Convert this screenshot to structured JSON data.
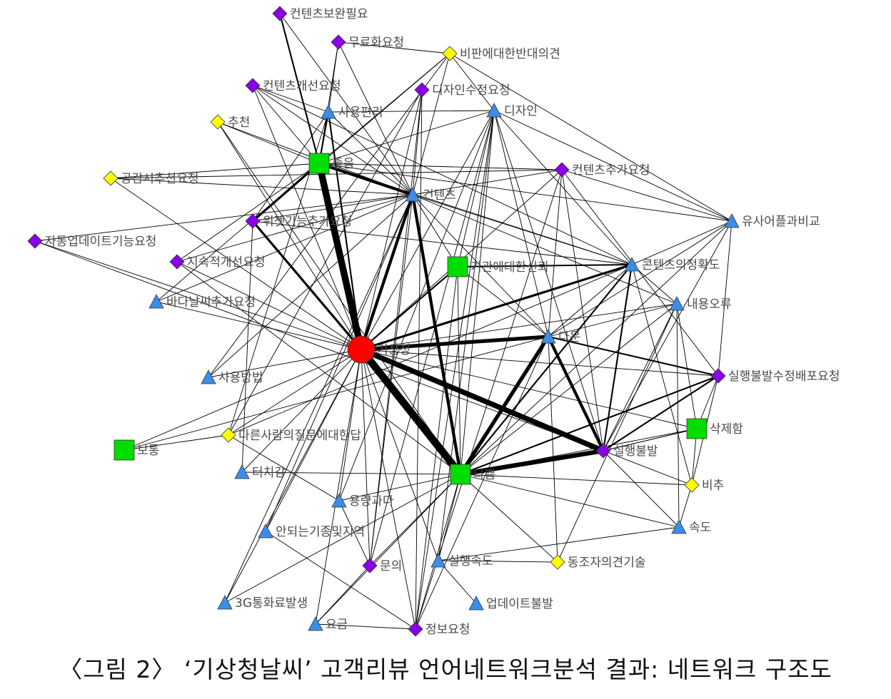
{
  "caption": "〈그림 2〉 ‘기상청날씨’ 고객리뷰 언어네트워크분석 결과: 네트워크 구조도",
  "colors": {
    "circle": "#ff0000",
    "square": "#00dd00",
    "triangle": "#3b8ee8",
    "diamond_purple": "#8a00e6",
    "diamond_yellow": "#ffff00",
    "edge": "#000000",
    "label": "#4a4a4a"
  },
  "nodes": [
    {
      "id": "기상청",
      "label": "기상청",
      "shape": "circle"
    },
    {
      "id": "좋음",
      "label": "좋음",
      "shape": "square"
    },
    {
      "id": "기관에대한신뢰",
      "label": "기관에대한신뢰",
      "shape": "square"
    },
    {
      "id": "보통",
      "label": "보통",
      "shape": "square"
    },
    {
      "id": "나쁨",
      "label": "나쁨",
      "shape": "square"
    },
    {
      "id": "삭제함",
      "label": "삭제함",
      "shape": "square"
    },
    {
      "id": "사용편리",
      "label": "사용편리",
      "shape": "triangle"
    },
    {
      "id": "디자인",
      "label": "디자인",
      "shape": "triangle"
    },
    {
      "id": "컨텐츠",
      "label": "컨텐츠",
      "shape": "triangle"
    },
    {
      "id": "유사어플과비교",
      "label": "유사어플과비교",
      "shape": "triangle"
    },
    {
      "id": "콘텐츠의정확도",
      "label": "콘텐츠의정확도",
      "shape": "triangle"
    },
    {
      "id": "내용오류",
      "label": "내용오류",
      "shape": "triangle"
    },
    {
      "id": "다운",
      "label": "다운",
      "shape": "triangle"
    },
    {
      "id": "바다날씨추가요청",
      "label": "바다날씨추가요청",
      "shape": "triangle"
    },
    {
      "id": "사용방법",
      "label": "사용방법",
      "shape": "triangle"
    },
    {
      "id": "터치감",
      "label": "터치감",
      "shape": "triangle"
    },
    {
      "id": "용량과다",
      "label": "용량과다",
      "shape": "triangle"
    },
    {
      "id": "안되는기종및지역",
      "label": "안되는기종및지역",
      "shape": "triangle"
    },
    {
      "id": "3G통화료발생",
      "label": "3G통화료발생",
      "shape": "triangle"
    },
    {
      "id": "요금",
      "label": "요금",
      "shape": "triangle"
    },
    {
      "id": "실행속도",
      "label": "실행속도",
      "shape": "triangle"
    },
    {
      "id": "업데이트불발",
      "label": "업데이트불발",
      "shape": "triangle"
    },
    {
      "id": "속도",
      "label": "속도",
      "shape": "triangle"
    },
    {
      "id": "컨텐츠보완필요",
      "label": "컨텐츠보완필요",
      "shape": "diamond_purple"
    },
    {
      "id": "무료화요청",
      "label": "무료화요청",
      "shape": "diamond_purple"
    },
    {
      "id": "컨텐츠개선요청",
      "label": "컨텐츠개선요청",
      "shape": "diamond_purple"
    },
    {
      "id": "디자인수정요청",
      "label": "디자인수정요청",
      "shape": "diamond_purple"
    },
    {
      "id": "컨텐츠추가요청",
      "label": "컨텐츠추가요청",
      "shape": "diamond_purple"
    },
    {
      "id": "위젯기능추가요청",
      "label": "위젯기능추가요청",
      "shape": "diamond_purple"
    },
    {
      "id": "자동업데이트기능요청",
      "label": "자동업데이트기능요청",
      "shape": "diamond_purple"
    },
    {
      "id": "지속적개선요청",
      "label": "지속적개선요청",
      "shape": "diamond_purple"
    },
    {
      "id": "실행불발수정배포요청",
      "label": "실행불발수정배포요청",
      "shape": "diamond_purple"
    },
    {
      "id": "실행불발",
      "label": "실행불발",
      "shape": "diamond_purple"
    },
    {
      "id": "문의",
      "label": "문의",
      "shape": "diamond_purple"
    },
    {
      "id": "정보요청",
      "label": "정보요청",
      "shape": "diamond_purple"
    },
    {
      "id": "비판에대한반대의견",
      "label": "비판에대한반대의견",
      "shape": "diamond_yellow"
    },
    {
      "id": "추천",
      "label": "추천",
      "shape": "diamond_yellow"
    },
    {
      "id": "공감시추천요청",
      "label": "공감시추천요청",
      "shape": "diamond_yellow"
    },
    {
      "id": "다른사람의질문에대한답",
      "label": "다른사람의질문에대한답",
      "shape": "diamond_yellow"
    },
    {
      "id": "비추",
      "label": "비추",
      "shape": "diamond_yellow"
    },
    {
      "id": "동조자의견기술",
      "label": "동조자의견기술",
      "shape": "diamond_yellow"
    }
  ],
  "edges": [
    {
      "source": "기상청",
      "target": "좋음",
      "weight": 9
    },
    {
      "source": "기상청",
      "target": "나쁨",
      "weight": 10
    },
    {
      "source": "기상청",
      "target": "실행불발",
      "weight": 7
    },
    {
      "source": "기상청",
      "target": "다운",
      "weight": 5
    },
    {
      "source": "기상청",
      "target": "컨텐츠",
      "weight": 4
    },
    {
      "source": "기상청",
      "target": "위젯기능추가요청",
      "weight": 3
    },
    {
      "source": "기상청",
      "target": "콘텐츠의정확도",
      "weight": 3
    },
    {
      "source": "기상청",
      "target": "기관에대한신뢰",
      "weight": 2
    },
    {
      "source": "기상청",
      "target": "사용편리",
      "weight": 2
    },
    {
      "source": "기상청",
      "target": "실행불발수정배포요청",
      "weight": 1
    },
    {
      "source": "기상청",
      "target": "삭제함",
      "weight": 1
    },
    {
      "source": "기상청",
      "target": "내용오류",
      "weight": 1
    },
    {
      "source": "기상청",
      "target": "보통",
      "weight": 1
    },
    {
      "source": "기상청",
      "target": "다른사람의질문에대한답",
      "weight": 1
    },
    {
      "source": "기상청",
      "target": "사용방법",
      "weight": 1
    },
    {
      "source": "기상청",
      "target": "바다날씨추가요청",
      "weight": 1
    },
    {
      "source": "기상청",
      "target": "지속적개선요청",
      "weight": 1
    },
    {
      "source": "기상청",
      "target": "자동업데이트기능요청",
      "weight": 1
    },
    {
      "source": "기상청",
      "target": "공감시추천요청",
      "weight": 1
    },
    {
      "source": "기상청",
      "target": "터치감",
      "weight": 1
    },
    {
      "source": "기상청",
      "target": "용량과다",
      "weight": 1
    },
    {
      "source": "기상청",
      "target": "안되는기종및지역",
      "weight": 1
    },
    {
      "source": "기상청",
      "target": "3G통화료발생",
      "weight": 1
    },
    {
      "source": "기상청",
      "target": "요금",
      "weight": 1
    },
    {
      "source": "기상청",
      "target": "문의",
      "weight": 1
    },
    {
      "source": "기상청",
      "target": "실행속도",
      "weight": 1
    },
    {
      "source": "기상청",
      "target": "정보요청",
      "weight": 1
    },
    {
      "source": "기상청",
      "target": "디자인",
      "weight": 1
    },
    {
      "source": "기상청",
      "target": "컨텐츠추가요청",
      "weight": 1
    },
    {
      "source": "기상청",
      "target": "디자인수정요청",
      "weight": 1
    },
    {
      "source": "기상청",
      "target": "컨텐츠개선요청",
      "weight": 1
    },
    {
      "source": "기상청",
      "target": "추천",
      "weight": 1
    },
    {
      "source": "좋음",
      "target": "컨텐츠",
      "weight": 4
    },
    {
      "source": "좋음",
      "target": "위젯기능추가요청",
      "weight": 3
    },
    {
      "source": "좋음",
      "target": "사용편리",
      "weight": 2
    },
    {
      "source": "좋음",
      "target": "컨텐츠보완필요",
      "weight": 2
    },
    {
      "source": "좋음",
      "target": "무료화요청",
      "weight": 1
    },
    {
      "source": "좋음",
      "target": "컨텐츠개선요청",
      "weight": 1
    },
    {
      "source": "좋음",
      "target": "추천",
      "weight": 1
    },
    {
      "source": "좋음",
      "target": "공감시추천요청",
      "weight": 1
    },
    {
      "source": "좋음",
      "target": "디자인",
      "weight": 1
    },
    {
      "source": "좋음",
      "target": "컨텐츠추가요청",
      "weight": 1
    },
    {
      "source": "좋음",
      "target": "유사어플과비교",
      "weight": 1
    },
    {
      "source": "좋음",
      "target": "바다날씨추가요청",
      "weight": 1
    },
    {
      "source": "좋음",
      "target": "지속적개선요청",
      "weight": 1
    },
    {
      "source": "좋음",
      "target": "콘텐츠의정확도",
      "weight": 1
    },
    {
      "source": "좋음",
      "target": "비판에대한반대의견",
      "weight": 1
    },
    {
      "source": "컨텐츠",
      "target": "나쁨",
      "weight": 4
    },
    {
      "source": "컨텐츠",
      "target": "위젯기능추가요청",
      "weight": 1
    },
    {
      "source": "컨텐츠",
      "target": "자동업데이트기능요청",
      "weight": 1
    },
    {
      "source": "컨텐츠",
      "target": "다운",
      "weight": 1
    },
    {
      "source": "컨텐츠",
      "target": "콘텐츠의정확도",
      "weight": 1
    },
    {
      "source": "컨텐츠",
      "target": "내용오류",
      "weight": 1
    },
    {
      "source": "컨텐츠",
      "target": "컨텐츠개선요청",
      "weight": 1
    },
    {
      "source": "컨텐츠",
      "target": "디자인수정요청",
      "weight": 1
    },
    {
      "source": "컨텐츠",
      "target": "컨텐츠추가요청",
      "weight": 1
    },
    {
      "source": "컨텐츠",
      "target": "문의",
      "weight": 1
    },
    {
      "source": "컨텐츠",
      "target": "지속적개선요청",
      "weight": 1
    },
    {
      "source": "나쁨",
      "target": "실행불발",
      "weight": 6
    },
    {
      "source": "나쁨",
      "target": "다운",
      "weight": 5
    },
    {
      "source": "나쁨",
      "target": "실행불발수정배포요청",
      "weight": 2
    },
    {
      "source": "나쁨",
      "target": "콘텐츠의정확도",
      "weight": 2
    },
    {
      "source": "나쁨",
      "target": "삭제함",
      "weight": 1
    },
    {
      "source": "나쁨",
      "target": "비추",
      "weight": 1
    },
    {
      "source": "나쁨",
      "target": "속도",
      "weight": 1
    },
    {
      "source": "나쁨",
      "target": "터치감",
      "weight": 1
    },
    {
      "source": "나쁨",
      "target": "용량과다",
      "weight": 1
    },
    {
      "source": "나쁨",
      "target": "문의",
      "weight": 1
    },
    {
      "source": "나쁨",
      "target": "정보요청",
      "weight": 1
    },
    {
      "source": "나쁨",
      "target": "요금",
      "weight": 1
    },
    {
      "source": "나쁨",
      "target": "동조자의견기술",
      "weight": 1
    },
    {
      "source": "나쁨",
      "target": "디자인",
      "weight": 1
    },
    {
      "source": "나쁨",
      "target": "내용오류",
      "weight": 1
    },
    {
      "source": "나쁨",
      "target": "유사어플과비교",
      "weight": 1
    },
    {
      "source": "나쁨",
      "target": "기관에대한신뢰",
      "weight": 1
    },
    {
      "source": "나쁨",
      "target": "실행속도",
      "weight": 1
    },
    {
      "source": "실행불발",
      "target": "다운",
      "weight": 4
    },
    {
      "source": "실행불발",
      "target": "실행불발수정배포요청",
      "weight": 2
    },
    {
      "source": "실행불발",
      "target": "콘텐츠의정확도",
      "weight": 2
    },
    {
      "source": "실행불발",
      "target": "삭제함",
      "weight": 1
    },
    {
      "source": "실행불발",
      "target": "비추",
      "weight": 1
    },
    {
      "source": "실행불발",
      "target": "내용오류",
      "weight": 1
    },
    {
      "source": "실행불발",
      "target": "유사어플과비교",
      "weight": 1
    },
    {
      "source": "실행불발",
      "target": "디자인",
      "weight": 1
    },
    {
      "source": "실행불발",
      "target": "속도",
      "weight": 1
    },
    {
      "source": "실행불발",
      "target": "컨텐츠추가요청",
      "weight": 1
    },
    {
      "source": "다운",
      "target": "실행불발수정배포요청",
      "weight": 2
    },
    {
      "source": "다운",
      "target": "콘텐츠의정확도",
      "weight": 1
    },
    {
      "source": "다운",
      "target": "디자인",
      "weight": 1
    },
    {
      "source": "다운",
      "target": "유사어플과비교",
      "weight": 1
    },
    {
      "source": "다운",
      "target": "내용오류",
      "weight": 1
    },
    {
      "source": "다운",
      "target": "컨텐츠추가요청",
      "weight": 1
    },
    {
      "source": "다운",
      "target": "기관에대한신뢰",
      "weight": 1
    },
    {
      "source": "기관에대한신뢰",
      "target": "콘텐츠의정확도",
      "weight": 2
    },
    {
      "source": "기관에대한신뢰",
      "target": "컨텐츠",
      "weight": 1
    },
    {
      "source": "기관에대한신뢰",
      "target": "디자인",
      "weight": 1
    },
    {
      "source": "디자인",
      "target": "비판에대한반대의견",
      "weight": 1
    },
    {
      "source": "디자인",
      "target": "유사어플과비교",
      "weight": 1
    },
    {
      "source": "디자인",
      "target": "사용편리",
      "weight": 1
    },
    {
      "source": "디자인",
      "target": "문의",
      "weight": 1
    },
    {
      "source": "디자인",
      "target": "정보요청",
      "weight": 1
    },
    {
      "source": "디자인",
      "target": "실행속도",
      "weight": 1
    },
    {
      "source": "디자인",
      "target": "콘텐츠의정확도",
      "weight": 1
    },
    {
      "source": "사용편리",
      "target": "무료화요청",
      "weight": 1
    },
    {
      "source": "사용편리",
      "target": "컨텐츠개선요청",
      "weight": 1
    },
    {
      "source": "사용편리",
      "target": "위젯기능추가요청",
      "weight": 1
    },
    {
      "source": "사용편리",
      "target": "다른사람의질문에대한답",
      "weight": 1
    },
    {
      "source": "사용편리",
      "target": "컨텐츠",
      "weight": 1
    },
    {
      "source": "비판에대한반대의견",
      "target": "무료화요청",
      "weight": 1
    },
    {
      "source": "비판에대한반대의견",
      "target": "컨텐츠",
      "weight": 1
    },
    {
      "source": "비판에대한반대의견",
      "target": "위젯기능추가요청",
      "weight": 1
    },
    {
      "source": "비판에대한반대의견",
      "target": "유사어플과비교",
      "weight": 1
    },
    {
      "source": "컨텐츠보완필요",
      "target": "컨텐츠",
      "weight": 1
    },
    {
      "source": "컨텐츠개선요청",
      "target": "콘텐츠의정확도",
      "weight": 1
    },
    {
      "source": "공감시추천요청",
      "target": "컨텐츠",
      "weight": 1
    },
    {
      "source": "공감시추천요청",
      "target": "컨텐츠추가요청",
      "weight": 1
    },
    {
      "source": "추천",
      "target": "컨텐츠",
      "weight": 1
    },
    {
      "source": "추천",
      "target": "나쁨",
      "weight": 1
    },
    {
      "source": "자동업데이트기능요청",
      "target": "실행불발",
      "weight": 1
    },
    {
      "source": "지속적개선요청",
      "target": "나쁨",
      "weight": 1
    },
    {
      "source": "컨텐츠추가요청",
      "target": "실행불발수정배포요청",
      "weight": 1
    },
    {
      "source": "컨텐츠추가요청",
      "target": "정보요청",
      "weight": 1
    },
    {
      "source": "컨텐츠추가요청",
      "target": "유사어플과비교",
      "weight": 1
    },
    {
      "source": "유사어플과비교",
      "target": "콘텐츠의정확도",
      "weight": 1
    },
    {
      "source": "유사어플과비교",
      "target": "실행불발수정배포요청",
      "weight": 1
    },
    {
      "source": "콘텐츠의정확도",
      "target": "내용오류",
      "weight": 1
    },
    {
      "source": "콘텐츠의정확도",
      "target": "비추",
      "weight": 1
    },
    {
      "source": "내용오류",
      "target": "삭제함",
      "weight": 1
    },
    {
      "source": "내용오류",
      "target": "속도",
      "weight": 1
    },
    {
      "source": "내용오류",
      "target": "동조자의견기술",
      "weight": 1
    },
    {
      "source": "실행불발수정배포요청",
      "target": "삭제함",
      "weight": 1
    },
    {
      "source": "실행불발수정배포요청",
      "target": "비추",
      "weight": 1
    },
    {
      "source": "삭제함",
      "target": "비추",
      "weight": 1
    },
    {
      "source": "삭제함",
      "target": "실행불발",
      "weight": 1
    },
    {
      "source": "비추",
      "target": "속도",
      "weight": 1
    },
    {
      "source": "실행속도",
      "target": "속도",
      "weight": 1
    },
    {
      "source": "실행속도",
      "target": "업데이트불발",
      "weight": 1
    },
    {
      "source": "보통",
      "target": "다른사람의질문에대한답",
      "weight": 1
    },
    {
      "source": "보통",
      "target": "다운",
      "weight": 1
    },
    {
      "source": "다른사람의질문에대한답",
      "target": "디자인수정요청",
      "weight": 1
    },
    {
      "source": "다른사람의질문에대한답",
      "target": "용량과다",
      "weight": 1
    },
    {
      "source": "다른사람의질문에대한답",
      "target": "콘텐츠의정확도",
      "weight": 1
    },
    {
      "source": "터치감",
      "target": "위젯기능추가요청",
      "weight": 1
    },
    {
      "source": "용량과다",
      "target": "디자인",
      "weight": 1
    },
    {
      "source": "용량과다",
      "target": "문의",
      "weight": 1
    },
    {
      "source": "안되는기종및지역",
      "target": "정보요청",
      "weight": 1
    },
    {
      "source": "안되는기종및지역",
      "target": "컨텐츠",
      "weight": 1
    },
    {
      "source": "3G통화료발생",
      "target": "나쁨",
      "weight": 1
    },
    {
      "source": "3G통화료발생",
      "target": "컨텐츠",
      "weight": 1
    },
    {
      "source": "요금",
      "target": "정보요청",
      "weight": 1
    },
    {
      "source": "요금",
      "target": "문의",
      "weight": 1
    },
    {
      "source": "문의",
      "target": "디자인수정요청",
      "weight": 1
    },
    {
      "source": "정보요청",
      "target": "기관에대한신뢰",
      "weight": 1
    },
    {
      "source": "정보요청",
      "target": "다운",
      "weight": 1
    },
    {
      "source": "정보요청",
      "target": "디자인수정요청",
      "weight": 1
    },
    {
      "source": "동조자의견기술",
      "target": "실행속도",
      "weight": 1
    },
    {
      "source": "동조자의견기술",
      "target": "다운",
      "weight": 1
    },
    {
      "source": "바다날씨추가요청",
      "target": "컨텐츠",
      "weight": 1
    },
    {
      "source": "위젯기능추가요청",
      "target": "콘텐츠의정확도",
      "weight": 1
    },
    {
      "source": "무료화요청",
      "target": "컨텐츠",
      "weight": 1
    },
    {
      "source": "사용방법",
      "target": "컨텐츠",
      "weight": 1
    },
    {
      "source": "사용방법",
      "target": "비판에대한반대의견",
      "weight": 1
    }
  ]
}
